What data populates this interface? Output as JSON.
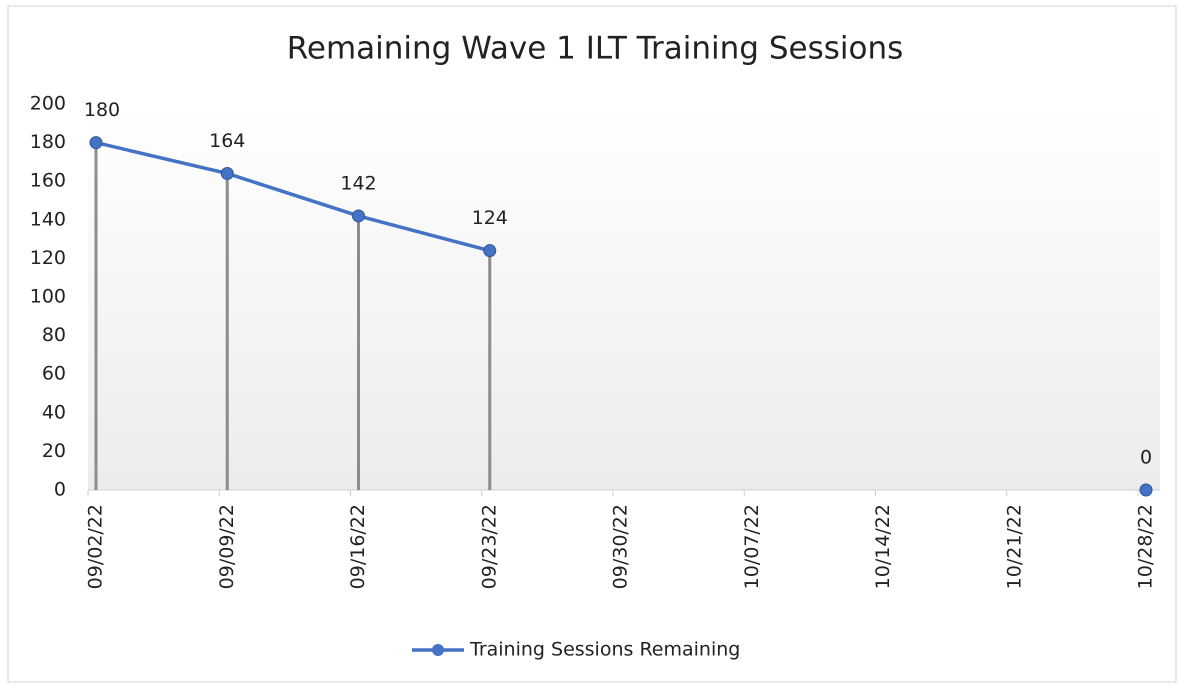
{
  "chart_data": {
    "type": "line",
    "title": "Remaining Wave 1 ILT Training Sessions",
    "categories": [
      "09/02/22",
      "09/09/22",
      "09/16/22",
      "09/23/22",
      "09/30/22",
      "10/07/22",
      "10/14/22",
      "10/21/22",
      "10/28/22"
    ],
    "series": [
      {
        "name": "Training Sessions Remaining",
        "color": "#4472c4",
        "values": [
          180,
          164,
          142,
          124,
          null,
          null,
          null,
          null,
          0
        ]
      }
    ],
    "ylim": [
      0,
      200
    ],
    "yticks": [
      0,
      20,
      40,
      60,
      80,
      100,
      120,
      140,
      160,
      180,
      200
    ],
    "drop_lines": true,
    "legend": "bottom"
  }
}
